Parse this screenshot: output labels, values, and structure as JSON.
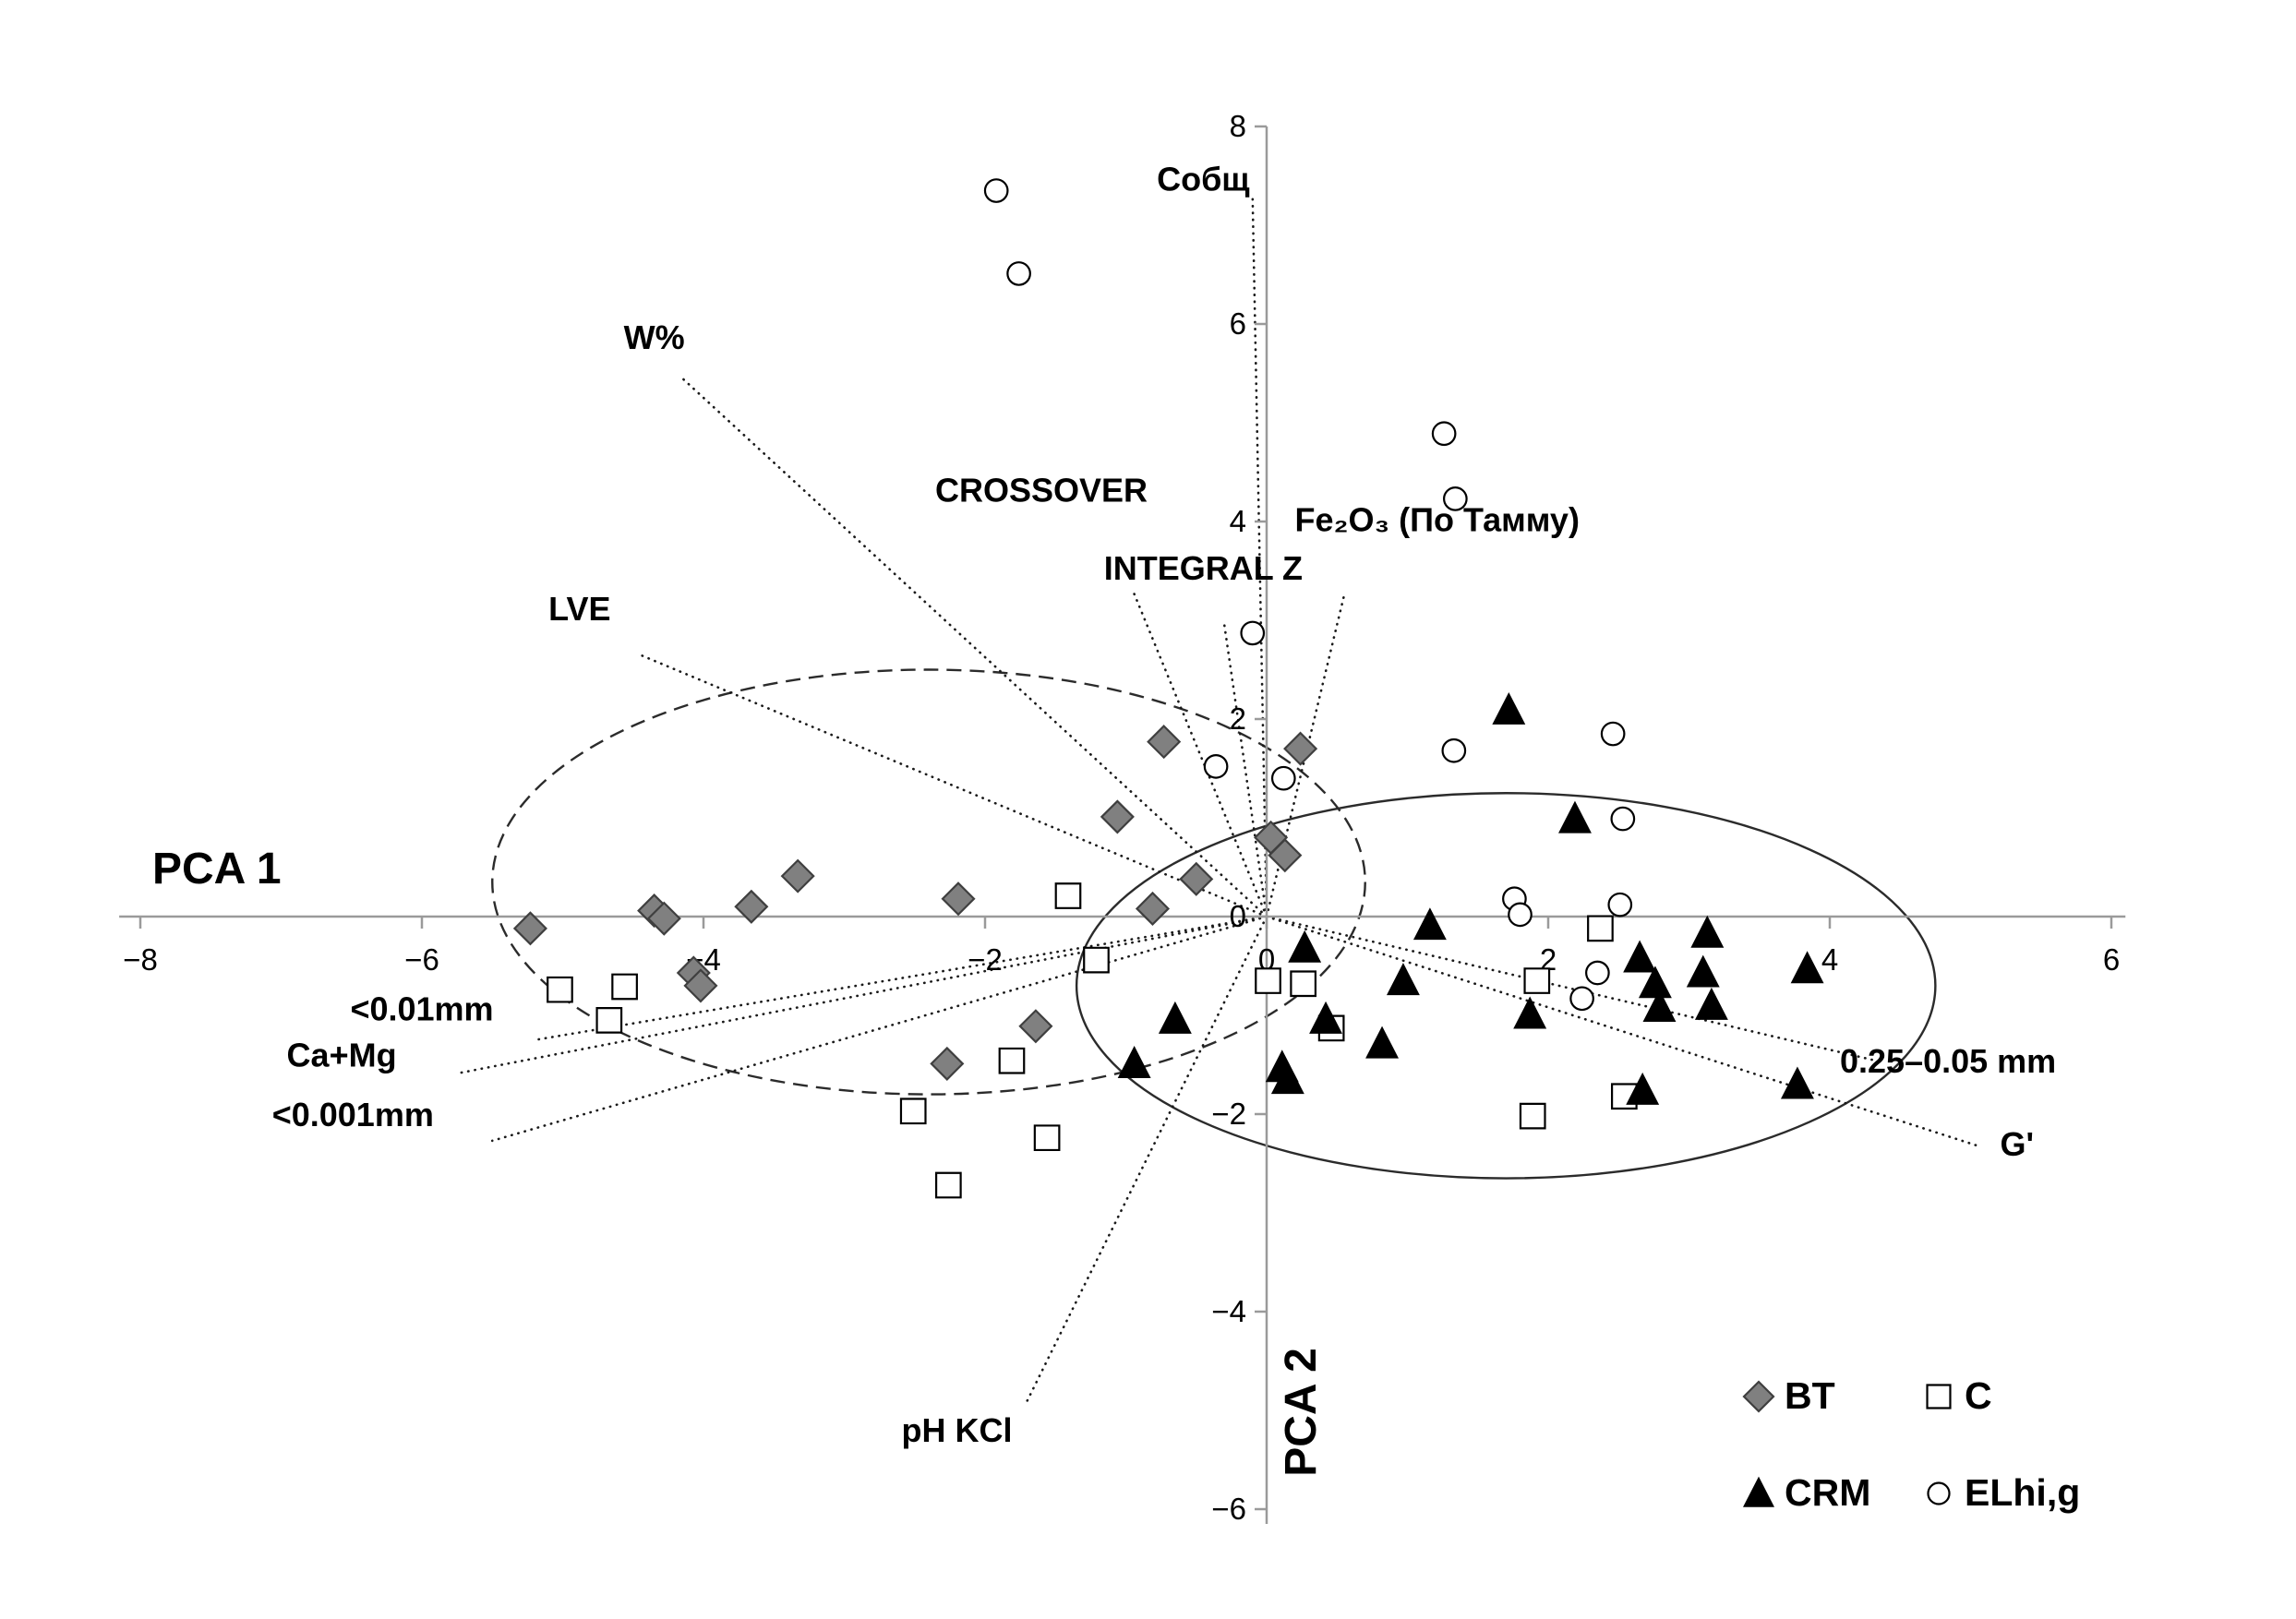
{
  "chart_data": {
    "type": "scatter",
    "title": "",
    "xlabel": "PCA 1",
    "ylabel": "PCA 2",
    "xlim": [
      -8,
      6
    ],
    "ylim": [
      -6,
      8
    ],
    "grid": false,
    "x_ticks": [
      -8,
      -6,
      -4,
      -2,
      0,
      2,
      4,
      6
    ],
    "y_ticks": [
      8,
      6,
      4,
      2,
      0,
      -2,
      -4,
      -6
    ],
    "series": [
      {
        "name": "BT",
        "marker": "diamond",
        "fill": "#808080",
        "stroke": "#3f3f3f",
        "points": [
          [
            -0.73,
            1.77
          ],
          [
            0.24,
            1.7
          ],
          [
            -1.06,
            1.01
          ],
          [
            0.03,
            0.8
          ],
          [
            0.13,
            0.62
          ],
          [
            -3.33,
            0.41
          ],
          [
            -2.19,
            0.18
          ],
          [
            -3.66,
            0.1
          ],
          [
            -4.35,
            0.06
          ],
          [
            -4.28,
            -0.02
          ],
          [
            -5.23,
            -0.12
          ],
          [
            -0.81,
            0.08
          ],
          [
            -0.5,
            0.38
          ],
          [
            -4.07,
            -0.57
          ],
          [
            -4.02,
            -0.7
          ],
          [
            -1.64,
            -1.11
          ],
          [
            -2.27,
            -1.49
          ]
        ]
      },
      {
        "name": "C",
        "marker": "square",
        "fill": "#ffffff",
        "stroke": "#000000",
        "points": [
          [
            -1.41,
            0.21
          ],
          [
            -1.21,
            -0.44
          ],
          [
            -5.02,
            -0.74
          ],
          [
            -4.56,
            -0.71
          ],
          [
            -4.67,
            -1.05
          ],
          [
            0.01,
            -0.65
          ],
          [
            0.26,
            -0.68
          ],
          [
            0.46,
            -1.13
          ],
          [
            -1.81,
            -1.46
          ],
          [
            -2.51,
            -1.97
          ],
          [
            -1.56,
            -2.24
          ],
          [
            -2.26,
            -2.72
          ],
          [
            1.92,
            -0.65
          ],
          [
            2.37,
            -0.12
          ],
          [
            2.54,
            -1.82
          ],
          [
            1.89,
            -2.02
          ]
        ]
      },
      {
        "name": "CRM",
        "marker": "triangle",
        "fill": "#000000",
        "stroke": "#000000",
        "points": [
          [
            1.72,
            2.09
          ],
          [
            2.19,
            0.99
          ],
          [
            1.16,
            -0.09
          ],
          [
            0.27,
            -0.32
          ],
          [
            0.97,
            -0.65
          ],
          [
            2.65,
            -0.42
          ],
          [
            3.13,
            -0.17
          ],
          [
            2.76,
            -0.68
          ],
          [
            3.1,
            -0.57
          ],
          [
            3.16,
            -0.9
          ],
          [
            3.84,
            -0.53
          ],
          [
            0.82,
            -1.29
          ],
          [
            0.42,
            -1.04
          ],
          [
            0.11,
            -1.53
          ],
          [
            0.15,
            -1.65
          ],
          [
            -0.65,
            -1.04
          ],
          [
            -0.94,
            -1.49
          ],
          [
            1.87,
            -0.99
          ],
          [
            2.79,
            -0.92
          ],
          [
            2.67,
            -1.76
          ],
          [
            3.77,
            -1.7
          ]
        ]
      },
      {
        "name": "ELhi,g",
        "marker": "circle",
        "fill": "#ffffff",
        "stroke": "#000000",
        "points": [
          [
            -1.92,
            7.35
          ],
          [
            -1.76,
            6.51
          ],
          [
            1.26,
            4.89
          ],
          [
            1.34,
            4.23
          ],
          [
            -0.1,
            2.87
          ],
          [
            -0.36,
            1.52
          ],
          [
            0.12,
            1.4
          ],
          [
            1.33,
            1.68
          ],
          [
            2.46,
            1.85
          ],
          [
            2.53,
            0.99
          ],
          [
            1.76,
            0.18
          ],
          [
            1.8,
            0.02
          ],
          [
            2.51,
            0.12
          ],
          [
            2.35,
            -0.57
          ],
          [
            2.24,
            -0.83
          ]
        ]
      }
    ],
    "vectors": [
      {
        "label": "Собщ",
        "end": [
          -0.1,
          7.3
        ],
        "label_pos": [
          -0.12,
          7.35
        ],
        "anchor": "end"
      },
      {
        "label": "W%",
        "end": [
          -4.15,
          5.45
        ],
        "label_pos": [
          -4.35,
          5.75
        ],
        "anchor": "middle"
      },
      {
        "label": "CROSSOVER",
        "end": [
          -0.95,
          3.3
        ],
        "label_pos": [
          -1.6,
          4.2
        ],
        "anchor": "middle"
      },
      {
        "label": "INTEGRAL Z",
        "end": [
          -0.3,
          2.95
        ],
        "label_pos": [
          -0.45,
          3.41
        ],
        "anchor": "middle"
      },
      {
        "label": "Fe₂O₃  (По Тамму)",
        "end": [
          0.55,
          3.25
        ],
        "label_pos": [
          0.2,
          3.9
        ],
        "anchor": "start"
      },
      {
        "label": "LVE",
        "end": [
          -4.45,
          2.65
        ],
        "label_pos": [
          -4.88,
          3.0
        ],
        "anchor": "middle"
      },
      {
        "label": "<0.01mm",
        "end": [
          -5.2,
          -1.25
        ],
        "label_pos": [
          -6.0,
          -1.05
        ],
        "anchor": "middle"
      },
      {
        "label": "Ca+Mg",
        "end": [
          -5.72,
          -1.58
        ],
        "label_pos": [
          -6.57,
          -1.52
        ],
        "anchor": "middle"
      },
      {
        "label": "<0.001mm",
        "end": [
          -5.5,
          -2.27
        ],
        "label_pos": [
          -6.49,
          -2.12
        ],
        "anchor": "middle"
      },
      {
        "label": "pH KCl",
        "end": [
          -1.71,
          -4.93
        ],
        "label_pos": [
          -2.2,
          -5.32
        ],
        "anchor": "middle"
      },
      {
        "label": "0.25–0.05 mm",
        "end": [
          4.36,
          -1.47
        ],
        "label_pos": [
          4.84,
          -1.58
        ],
        "anchor": "middle"
      },
      {
        "label": "G'",
        "end": [
          5.07,
          -2.33
        ],
        "label_pos": [
          5.33,
          -2.42
        ],
        "anchor": "middle"
      }
    ],
    "ellipses": [
      {
        "style": "dashed",
        "cx": -2.4,
        "cy": 0.35,
        "rx": 3.1,
        "ry": 2.15
      },
      {
        "style": "solid",
        "cx": 1.7,
        "cy": -0.7,
        "rx": 3.05,
        "ry": 1.95
      }
    ],
    "legend": {
      "position": "bottom-right",
      "items": [
        {
          "label": "BT",
          "marker": "diamond"
        },
        {
          "label": "C",
          "marker": "square"
        },
        {
          "label": "CRM",
          "marker": "triangle"
        },
        {
          "label": "ELhi,g",
          "marker": "circle"
        }
      ]
    }
  }
}
